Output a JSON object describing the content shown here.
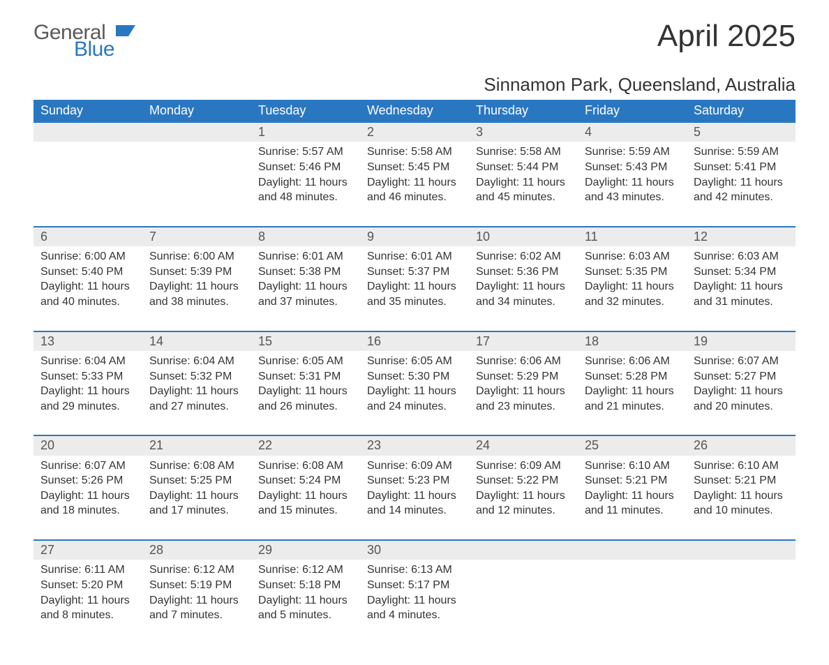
{
  "brand": {
    "word1": "General",
    "word2": "Blue",
    "accent_color": "#2a77c1",
    "text_color": "#5a5a5a"
  },
  "title": "April 2025",
  "location": "Sinnamon Park, Queensland, Australia",
  "colors": {
    "header_bg": "#2a77c1",
    "header_text": "#ffffff",
    "daynum_bg": "#ececec",
    "daynum_text": "#555555",
    "body_text": "#333333",
    "page_bg": "#ffffff",
    "row_border": "#2a77c1"
  },
  "columns": [
    "Sunday",
    "Monday",
    "Tuesday",
    "Wednesday",
    "Thursday",
    "Friday",
    "Saturday"
  ],
  "weeks": [
    [
      null,
      null,
      {
        "n": "1",
        "sunrise": "5:57 AM",
        "sunset": "5:46 PM",
        "daylight": "11 hours and 48 minutes."
      },
      {
        "n": "2",
        "sunrise": "5:58 AM",
        "sunset": "5:45 PM",
        "daylight": "11 hours and 46 minutes."
      },
      {
        "n": "3",
        "sunrise": "5:58 AM",
        "sunset": "5:44 PM",
        "daylight": "11 hours and 45 minutes."
      },
      {
        "n": "4",
        "sunrise": "5:59 AM",
        "sunset": "5:43 PM",
        "daylight": "11 hours and 43 minutes."
      },
      {
        "n": "5",
        "sunrise": "5:59 AM",
        "sunset": "5:41 PM",
        "daylight": "11 hours and 42 minutes."
      }
    ],
    [
      {
        "n": "6",
        "sunrise": "6:00 AM",
        "sunset": "5:40 PM",
        "daylight": "11 hours and 40 minutes."
      },
      {
        "n": "7",
        "sunrise": "6:00 AM",
        "sunset": "5:39 PM",
        "daylight": "11 hours and 38 minutes."
      },
      {
        "n": "8",
        "sunrise": "6:01 AM",
        "sunset": "5:38 PM",
        "daylight": "11 hours and 37 minutes."
      },
      {
        "n": "9",
        "sunrise": "6:01 AM",
        "sunset": "5:37 PM",
        "daylight": "11 hours and 35 minutes."
      },
      {
        "n": "10",
        "sunrise": "6:02 AM",
        "sunset": "5:36 PM",
        "daylight": "11 hours and 34 minutes."
      },
      {
        "n": "11",
        "sunrise": "6:03 AM",
        "sunset": "5:35 PM",
        "daylight": "11 hours and 32 minutes."
      },
      {
        "n": "12",
        "sunrise": "6:03 AM",
        "sunset": "5:34 PM",
        "daylight": "11 hours and 31 minutes."
      }
    ],
    [
      {
        "n": "13",
        "sunrise": "6:04 AM",
        "sunset": "5:33 PM",
        "daylight": "11 hours and 29 minutes."
      },
      {
        "n": "14",
        "sunrise": "6:04 AM",
        "sunset": "5:32 PM",
        "daylight": "11 hours and 27 minutes."
      },
      {
        "n": "15",
        "sunrise": "6:05 AM",
        "sunset": "5:31 PM",
        "daylight": "11 hours and 26 minutes."
      },
      {
        "n": "16",
        "sunrise": "6:05 AM",
        "sunset": "5:30 PM",
        "daylight": "11 hours and 24 minutes."
      },
      {
        "n": "17",
        "sunrise": "6:06 AM",
        "sunset": "5:29 PM",
        "daylight": "11 hours and 23 minutes."
      },
      {
        "n": "18",
        "sunrise": "6:06 AM",
        "sunset": "5:28 PM",
        "daylight": "11 hours and 21 minutes."
      },
      {
        "n": "19",
        "sunrise": "6:07 AM",
        "sunset": "5:27 PM",
        "daylight": "11 hours and 20 minutes."
      }
    ],
    [
      {
        "n": "20",
        "sunrise": "6:07 AM",
        "sunset": "5:26 PM",
        "daylight": "11 hours and 18 minutes."
      },
      {
        "n": "21",
        "sunrise": "6:08 AM",
        "sunset": "5:25 PM",
        "daylight": "11 hours and 17 minutes."
      },
      {
        "n": "22",
        "sunrise": "6:08 AM",
        "sunset": "5:24 PM",
        "daylight": "11 hours and 15 minutes."
      },
      {
        "n": "23",
        "sunrise": "6:09 AM",
        "sunset": "5:23 PM",
        "daylight": "11 hours and 14 minutes."
      },
      {
        "n": "24",
        "sunrise": "6:09 AM",
        "sunset": "5:22 PM",
        "daylight": "11 hours and 12 minutes."
      },
      {
        "n": "25",
        "sunrise": "6:10 AM",
        "sunset": "5:21 PM",
        "daylight": "11 hours and 11 minutes."
      },
      {
        "n": "26",
        "sunrise": "6:10 AM",
        "sunset": "5:21 PM",
        "daylight": "11 hours and 10 minutes."
      }
    ],
    [
      {
        "n": "27",
        "sunrise": "6:11 AM",
        "sunset": "5:20 PM",
        "daylight": "11 hours and 8 minutes."
      },
      {
        "n": "28",
        "sunrise": "6:12 AM",
        "sunset": "5:19 PM",
        "daylight": "11 hours and 7 minutes."
      },
      {
        "n": "29",
        "sunrise": "6:12 AM",
        "sunset": "5:18 PM",
        "daylight": "11 hours and 5 minutes."
      },
      {
        "n": "30",
        "sunrise": "6:13 AM",
        "sunset": "5:17 PM",
        "daylight": "11 hours and 4 minutes."
      },
      null,
      null,
      null
    ]
  ],
  "labels": {
    "sunrise": "Sunrise: ",
    "sunset": "Sunset: ",
    "daylight": "Daylight: "
  }
}
